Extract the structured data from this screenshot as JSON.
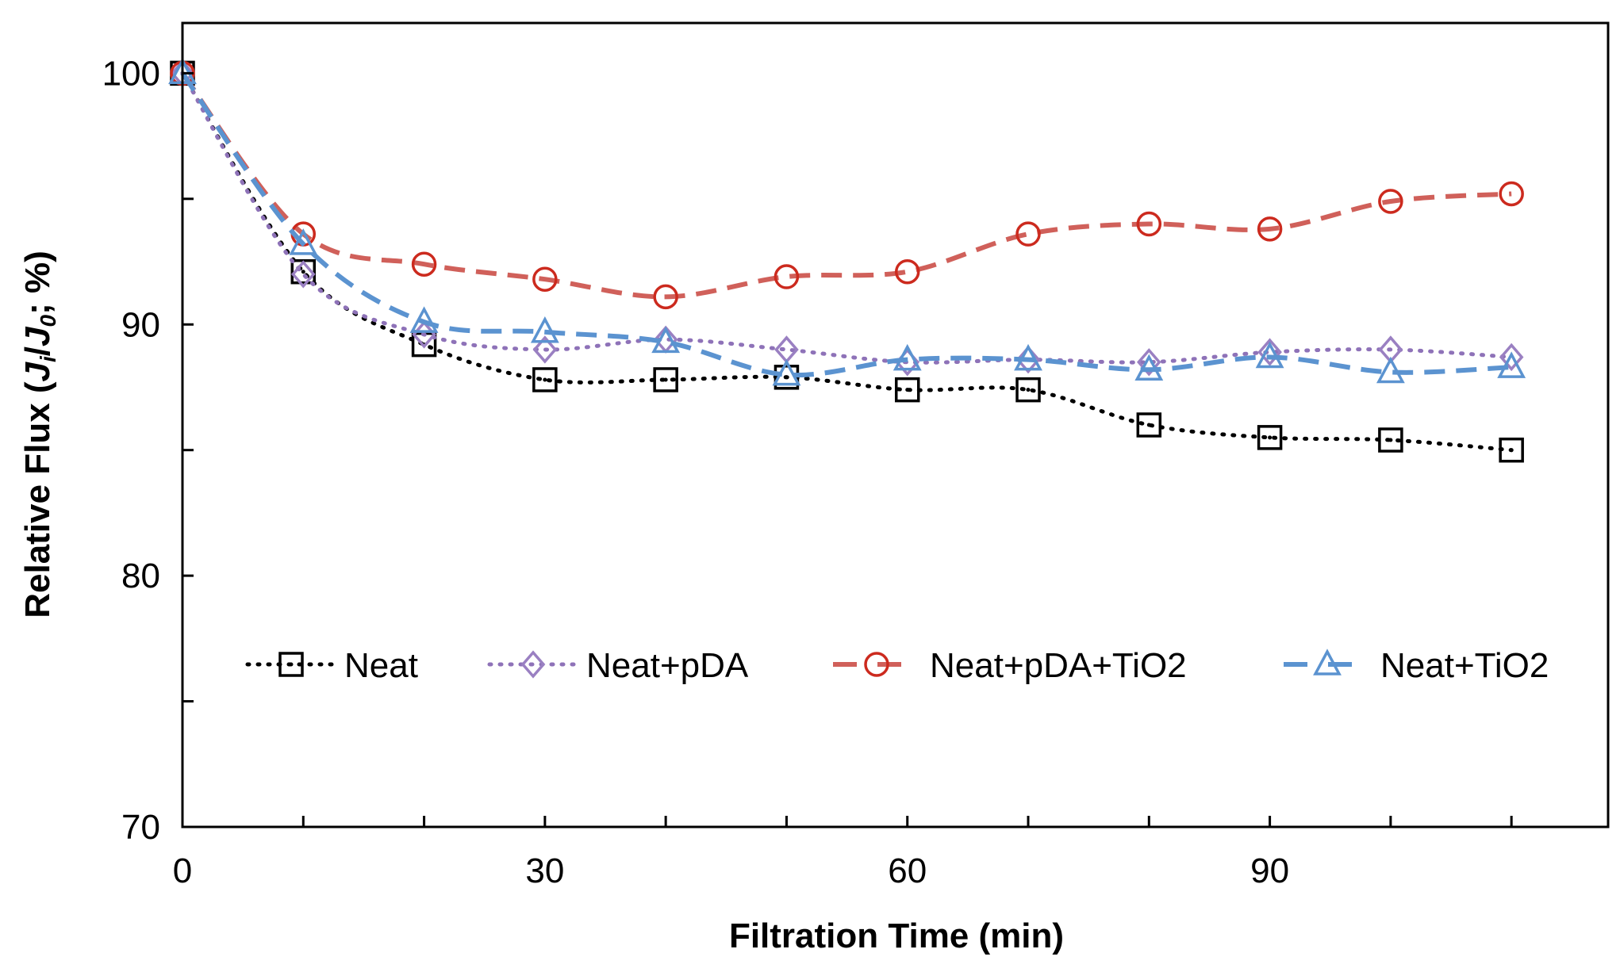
{
  "chart_data": {
    "type": "line",
    "title": "",
    "xlabel": "Filtration Time (min)",
    "ylabel_parts": [
      "Relative Flux (",
      "J",
      "i",
      "/",
      "J",
      "0",
      "; %)"
    ],
    "ylabel": "Relative Flux (Ji/J0; %)",
    "xlim": [
      0,
      118
    ],
    "ylim": [
      70,
      102
    ],
    "x_major_ticks": [
      0,
      30,
      60,
      90
    ],
    "x_minor_ticks": [
      10,
      20,
      40,
      50,
      70,
      80,
      100,
      110
    ],
    "y_major_ticks": [
      70,
      80,
      90,
      100
    ],
    "y_minor_ticks": [
      75,
      85,
      95
    ],
    "x_tick_labels": [
      "0",
      "30",
      "60",
      "90"
    ],
    "y_tick_labels": [
      "70",
      "80",
      "90",
      "100"
    ],
    "grid": false,
    "legend_position": "bottom-center inside",
    "x": [
      0,
      10,
      20,
      30,
      40,
      50,
      60,
      70,
      80,
      90,
      100,
      110
    ],
    "series": [
      {
        "name": "Neat",
        "marker": "square",
        "style": "dotted",
        "color": "#000000",
        "marker_color": "#000000",
        "values": [
          100,
          92.1,
          89.2,
          87.8,
          87.8,
          87.9,
          87.4,
          87.4,
          86.0,
          85.5,
          85.4,
          85.0
        ]
      },
      {
        "name": "Neat+pDA",
        "marker": "diamond",
        "style": "dotted",
        "color": "#8e72b8",
        "marker_color": "#9a80c2",
        "values": [
          100,
          92.0,
          89.6,
          89.0,
          89.4,
          89.0,
          88.5,
          88.6,
          88.5,
          88.9,
          89.0,
          88.7
        ]
      },
      {
        "name": "Neat+pDA+TiO2",
        "marker": "circle",
        "style": "dashed",
        "color": "#d0605a",
        "marker_color": "#cc2a1e",
        "values": [
          100,
          93.6,
          92.4,
          91.8,
          91.1,
          91.9,
          92.1,
          93.6,
          94.0,
          93.8,
          94.9,
          95.2
        ]
      },
      {
        "name": "Neat+TiO2",
        "marker": "triangle",
        "style": "dashed",
        "color": "#5b93d0",
        "marker_color": "#5b93d0",
        "values": [
          100,
          93.2,
          90.1,
          89.7,
          89.3,
          88.0,
          88.6,
          88.6,
          88.2,
          88.7,
          88.1,
          88.3
        ]
      }
    ]
  }
}
